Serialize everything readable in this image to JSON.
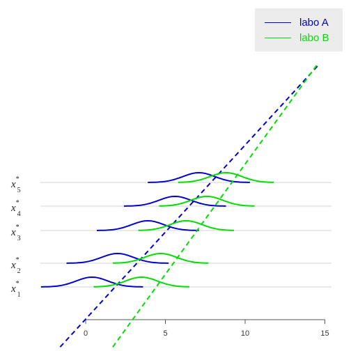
{
  "chart_data": {
    "type": "line",
    "title": "",
    "xlabel": "",
    "ylabel": "",
    "xlim": [
      -2.5,
      15.5
    ],
    "x_ticks": [
      "0",
      "5",
      "10",
      "15"
    ],
    "x_tick_values": [
      0,
      5,
      10,
      15
    ],
    "rows": [
      {
        "label": "x",
        "sup": "*",
        "sub": "1"
      },
      {
        "label": "x",
        "sup": "*",
        "sub": "2"
      },
      {
        "label": "x",
        "sup": "*",
        "sub": "3"
      },
      {
        "label": "x",
        "sup": "*",
        "sub": "4"
      },
      {
        "label": "x",
        "sup": "*",
        "sub": "5"
      }
    ],
    "series": [
      {
        "name": "labo A",
        "color": "#0000cc",
        "density_centers": [
          0.4,
          2.0,
          3.9,
          5.6,
          7.1
        ],
        "density_sd": 1.0,
        "density_halfwidth": 3.2,
        "diagonal": [
          [
            -1.6,
            -2.3
          ],
          [
            14.6,
            8.5
          ]
        ]
      },
      {
        "name": "labo B",
        "color": "#00dd00",
        "density_centers": [
          3.5,
          4.7,
          6.3,
          7.6,
          8.8
        ],
        "density_sd": 1.0,
        "density_halfwidth": 3.0,
        "diagonal": [
          [
            1.7,
            -2.3
          ],
          [
            14.5,
            8.5
          ]
        ]
      }
    ],
    "grid": "horizontal lines at each row",
    "legend_position": "top-right"
  },
  "legend": {
    "items": [
      {
        "label": "labo A",
        "color": "#0000cc"
      },
      {
        "label": "labo B",
        "color": "#00dd00"
      }
    ]
  }
}
